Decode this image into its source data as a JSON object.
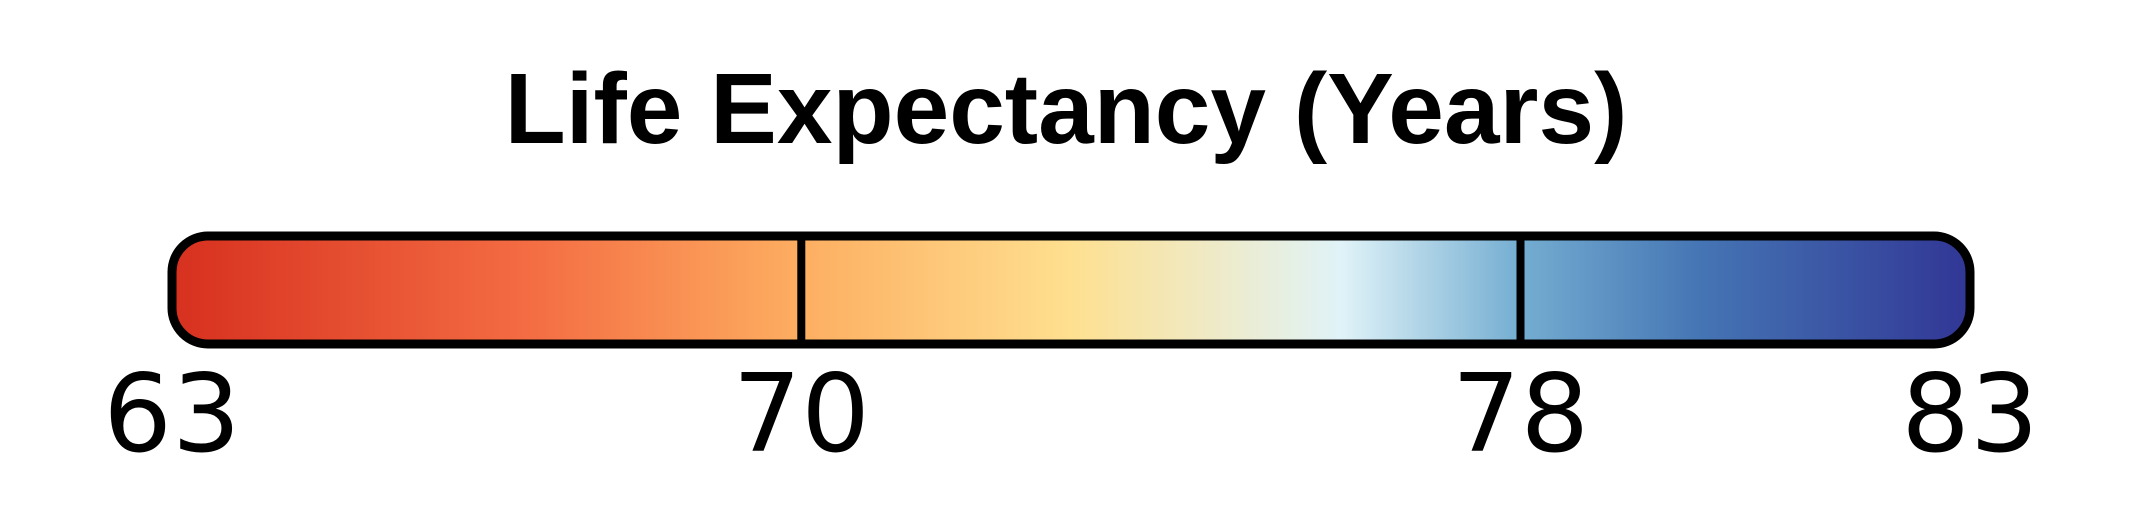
{
  "chart_data": {
    "type": "colorbar",
    "title": "Life Expectancy (Years)",
    "range": [
      63,
      83
    ],
    "boundaries": [
      63,
      70,
      78,
      83
    ],
    "tick_labels": [
      "63",
      "70",
      "78",
      "83"
    ],
    "colormap_stops": [
      {
        "value": 0.0,
        "color": "#d7301f"
      },
      {
        "value": 0.2,
        "color": "#f46d43"
      },
      {
        "value": 0.35,
        "color": "#fdae61"
      },
      {
        "value": 0.5,
        "color": "#fee090"
      },
      {
        "value": 0.65,
        "color": "#e0f3f8"
      },
      {
        "value": 0.75,
        "color": "#74add1"
      },
      {
        "value": 0.85,
        "color": "#4575b4"
      },
      {
        "value": 1.0,
        "color": "#313695"
      }
    ],
    "outline_color": "#000000"
  }
}
